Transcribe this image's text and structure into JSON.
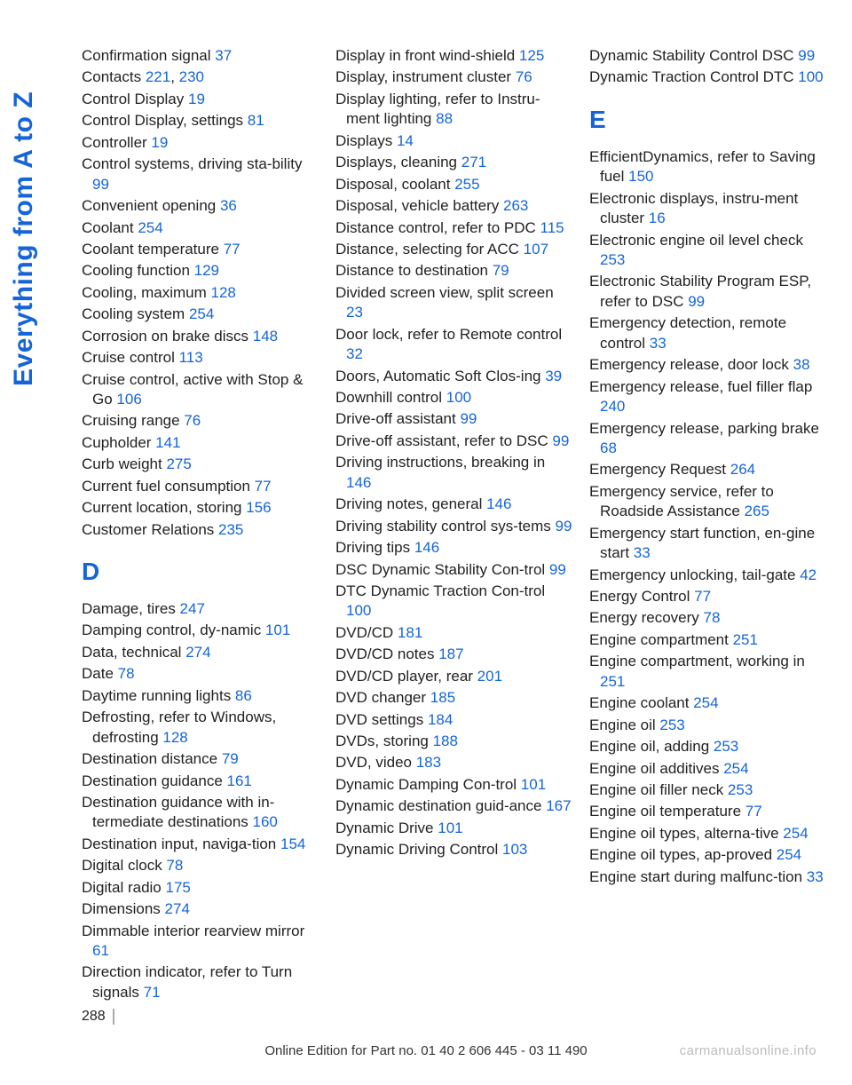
{
  "side_label": "Everything from A to Z",
  "page_number": "288",
  "footer": "Online Edition for Part no. 01 40 2 606 445 - 03 11 490",
  "watermark": "carmanualsonline.info",
  "sections": {
    "D": "D",
    "E": "E"
  },
  "col1": [
    {
      "t": "Confirmation signal ",
      "p": [
        "37"
      ]
    },
    {
      "t": "Contacts ",
      "p": [
        "221",
        "230"
      ],
      "sep": ", "
    },
    {
      "t": "Control Display ",
      "p": [
        "19"
      ]
    },
    {
      "t": "Control Display, settings ",
      "p": [
        "81"
      ]
    },
    {
      "t": "Controller ",
      "p": [
        "19"
      ]
    },
    {
      "t": "Control systems, driving sta‐bility ",
      "p": [
        "99"
      ]
    },
    {
      "t": "Convenient opening ",
      "p": [
        "36"
      ]
    },
    {
      "t": "Coolant ",
      "p": [
        "254"
      ]
    },
    {
      "t": "Coolant temperature ",
      "p": [
        "77"
      ]
    },
    {
      "t": "Cooling function ",
      "p": [
        "129"
      ]
    },
    {
      "t": "Cooling, maximum ",
      "p": [
        "128"
      ]
    },
    {
      "t": "Cooling system ",
      "p": [
        "254"
      ]
    },
    {
      "t": "Corrosion on brake discs ",
      "p": [
        "148"
      ]
    },
    {
      "t": "Cruise control ",
      "p": [
        "113"
      ]
    },
    {
      "t": "Cruise control, active with Stop & Go ",
      "p": [
        "106"
      ]
    },
    {
      "t": "Cruising range ",
      "p": [
        "76"
      ]
    },
    {
      "t": "Cupholder ",
      "p": [
        "141"
      ]
    },
    {
      "t": "Curb weight ",
      "p": [
        "275"
      ]
    },
    {
      "t": "Current fuel consumption ",
      "p": [
        "77"
      ]
    },
    {
      "t": "Current location, storing ",
      "p": [
        "156"
      ]
    },
    {
      "t": "Customer Relations ",
      "p": [
        "235"
      ]
    },
    {
      "letter": "D"
    },
    {
      "t": "Damage, tires ",
      "p": [
        "247"
      ]
    },
    {
      "t": "Damping control, dy‐namic ",
      "p": [
        "101"
      ]
    },
    {
      "t": "Data, technical ",
      "p": [
        "274"
      ]
    },
    {
      "t": "Date ",
      "p": [
        "78"
      ]
    },
    {
      "t": "Daytime running lights ",
      "p": [
        "86"
      ]
    },
    {
      "t": "Defrosting, refer to Windows, defrosting ",
      "p": [
        "128"
      ]
    },
    {
      "t": "Destination distance ",
      "p": [
        "79"
      ]
    },
    {
      "t": "Destination guidance ",
      "p": [
        "161"
      ]
    },
    {
      "t": "Destination guidance with in‐termediate destinations ",
      "p": [
        "160"
      ]
    },
    {
      "t": "Destination input, naviga‐tion ",
      "p": [
        "154"
      ]
    },
    {
      "t": "Digital clock ",
      "p": [
        "78"
      ]
    },
    {
      "t": "Digital radio ",
      "p": [
        "175"
      ]
    },
    {
      "t": "Dimensions ",
      "p": [
        "274"
      ]
    },
    {
      "t": "Dimmable interior rearview mirror ",
      "p": [
        "61"
      ]
    },
    {
      "t": "Direction indicator, refer to Turn signals ",
      "p": [
        "71"
      ]
    }
  ],
  "col2": [
    {
      "t": "Display in front wind‐shield ",
      "p": [
        "125"
      ]
    },
    {
      "t": "Display, instrument cluster ",
      "p": [
        "76"
      ]
    },
    {
      "t": "Display lighting, refer to Instru‐ment lighting ",
      "p": [
        "88"
      ]
    },
    {
      "t": "Displays ",
      "p": [
        "14"
      ]
    },
    {
      "t": "Displays, cleaning ",
      "p": [
        "271"
      ]
    },
    {
      "t": "Disposal, coolant ",
      "p": [
        "255"
      ]
    },
    {
      "t": "Disposal, vehicle battery ",
      "p": [
        "263"
      ]
    },
    {
      "t": "Distance control, refer to PDC ",
      "p": [
        "115"
      ]
    },
    {
      "t": "Distance, selecting for ACC ",
      "p": [
        "107"
      ]
    },
    {
      "t": "Distance to destination ",
      "p": [
        "79"
      ]
    },
    {
      "t": "Divided screen view, split screen ",
      "p": [
        "23"
      ]
    },
    {
      "t": "Door lock, refer to Remote control ",
      "p": [
        "32"
      ]
    },
    {
      "t": "Doors, Automatic Soft Clos‐ing ",
      "p": [
        "39"
      ]
    },
    {
      "t": "Downhill control ",
      "p": [
        "100"
      ]
    },
    {
      "t": "Drive-off assistant ",
      "p": [
        "99"
      ]
    },
    {
      "t": "Drive-off assistant, refer to DSC ",
      "p": [
        "99"
      ]
    },
    {
      "t": "Driving instructions, breaking in ",
      "p": [
        "146"
      ]
    },
    {
      "t": "Driving notes, general ",
      "p": [
        "146"
      ]
    },
    {
      "t": "Driving stability control sys‐tems ",
      "p": [
        "99"
      ]
    },
    {
      "t": "Driving tips ",
      "p": [
        "146"
      ]
    },
    {
      "t": "DSC Dynamic Stability Con‐trol ",
      "p": [
        "99"
      ]
    },
    {
      "t": "DTC Dynamic Traction Con‐trol ",
      "p": [
        "100"
      ]
    },
    {
      "t": "DVD/CD ",
      "p": [
        "181"
      ]
    },
    {
      "t": "DVD/CD notes ",
      "p": [
        "187"
      ]
    },
    {
      "t": "DVD/CD player, rear ",
      "p": [
        "201"
      ]
    },
    {
      "t": "DVD changer ",
      "p": [
        "185"
      ]
    },
    {
      "t": "DVD settings ",
      "p": [
        "184"
      ]
    },
    {
      "t": "DVDs, storing ",
      "p": [
        "188"
      ]
    },
    {
      "t": "DVD, video ",
      "p": [
        "183"
      ]
    },
    {
      "t": "Dynamic Damping Con‐trol ",
      "p": [
        "101"
      ]
    },
    {
      "t": "Dynamic destination guid‐ance ",
      "p": [
        "167"
      ]
    },
    {
      "t": "Dynamic Drive ",
      "p": [
        "101"
      ]
    },
    {
      "t": "Dynamic Driving Control ",
      "p": [
        "103"
      ]
    }
  ],
  "col3": [
    {
      "t": "Dynamic Stability Control DSC ",
      "p": [
        "99"
      ]
    },
    {
      "t": "Dynamic Traction Control DTC ",
      "p": [
        "100"
      ]
    },
    {
      "letter": "E"
    },
    {
      "t": "EfficientDynamics, refer to Saving fuel ",
      "p": [
        "150"
      ]
    },
    {
      "t": "Electronic displays, instru‐ment cluster ",
      "p": [
        "16"
      ]
    },
    {
      "t": "Electronic engine oil level check ",
      "p": [
        "253"
      ]
    },
    {
      "t": "Electronic Stability Program ESP, refer to DSC ",
      "p": [
        "99"
      ]
    },
    {
      "t": "Emergency detection, remote control ",
      "p": [
        "33"
      ]
    },
    {
      "t": "Emergency release, door lock ",
      "p": [
        "38"
      ]
    },
    {
      "t": "Emergency release, fuel filler flap ",
      "p": [
        "240"
      ]
    },
    {
      "t": "Emergency release, parking brake ",
      "p": [
        "68"
      ]
    },
    {
      "t": "Emergency Request ",
      "p": [
        "264"
      ]
    },
    {
      "t": "Emergency service, refer to Roadside Assistance ",
      "p": [
        "265"
      ]
    },
    {
      "t": "Emergency start function, en‐gine start ",
      "p": [
        "33"
      ]
    },
    {
      "t": "Emergency unlocking, tail‐gate ",
      "p": [
        "42"
      ]
    },
    {
      "t": "Energy Control ",
      "p": [
        "77"
      ]
    },
    {
      "t": "Energy recovery ",
      "p": [
        "78"
      ]
    },
    {
      "t": "Engine compartment ",
      "p": [
        "251"
      ]
    },
    {
      "t": "Engine compartment, working in ",
      "p": [
        "251"
      ]
    },
    {
      "t": "Engine coolant ",
      "p": [
        "254"
      ]
    },
    {
      "t": "Engine oil ",
      "p": [
        "253"
      ]
    },
    {
      "t": "Engine oil, adding ",
      "p": [
        "253"
      ]
    },
    {
      "t": "Engine oil additives ",
      "p": [
        "254"
      ]
    },
    {
      "t": "Engine oil filler neck ",
      "p": [
        "253"
      ]
    },
    {
      "t": "Engine oil temperature ",
      "p": [
        "77"
      ]
    },
    {
      "t": "Engine oil types, alterna‐tive ",
      "p": [
        "254"
      ]
    },
    {
      "t": "Engine oil types, ap‐proved ",
      "p": [
        "254"
      ]
    },
    {
      "t": "Engine start during malfunc‐tion ",
      "p": [
        "33"
      ]
    }
  ]
}
